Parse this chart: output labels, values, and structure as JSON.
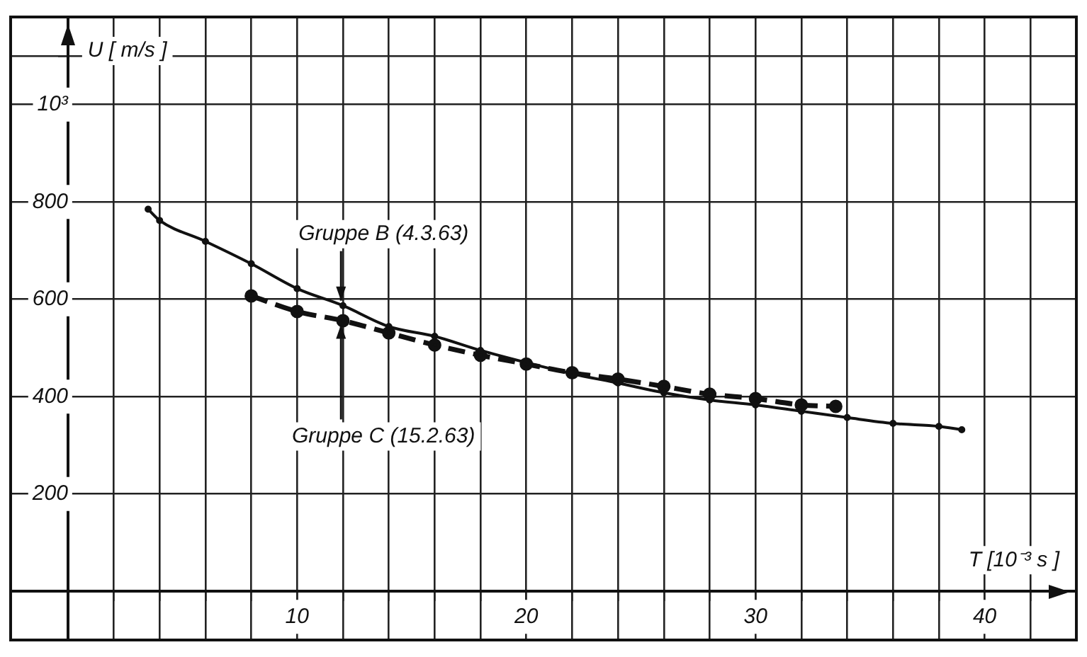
{
  "chart_data": {
    "type": "line",
    "xlabel": "T [10⁻³ s ]",
    "ylabel": "U [ m/s ]",
    "xlim": [
      -2.5,
      44
    ],
    "ylim": [
      -100,
      1180
    ],
    "xticks": [
      {
        "value": 0,
        "label": null
      },
      {
        "value": 2,
        "label": null
      },
      {
        "value": 4,
        "label": null
      },
      {
        "value": 6,
        "label": null
      },
      {
        "value": 8,
        "label": null
      },
      10,
      {
        "value": 12,
        "label": null
      },
      {
        "value": 14,
        "label": null
      },
      {
        "value": 16,
        "label": null
      },
      {
        "value": 18,
        "label": null
      },
      20,
      {
        "value": 22,
        "label": null
      },
      {
        "value": 24,
        "label": null
      },
      {
        "value": 26,
        "label": null
      },
      {
        "value": 28,
        "label": null
      },
      30,
      {
        "value": 32,
        "label": null
      },
      {
        "value": 34,
        "label": null
      },
      {
        "value": 36,
        "label": null
      },
      {
        "value": 38,
        "label": null
      },
      40,
      {
        "value": 42,
        "label": null
      }
    ],
    "yticks": [
      {
        "value": 0,
        "label": null
      },
      200,
      400,
      600,
      800,
      {
        "value": 1000,
        "label": "10³"
      },
      {
        "value": 1100,
        "label": null
      }
    ],
    "grid": true,
    "legend": false,
    "marker": "circle",
    "series": [
      {
        "name": "Gruppe B (4.3.63)",
        "color": "#111111",
        "line_style": "solid",
        "x": [
          3.5,
          4,
          6,
          8,
          10,
          12,
          14,
          16,
          18,
          20,
          22,
          24,
          26,
          28,
          30,
          32,
          34,
          36,
          38,
          39
        ],
        "values": [
          785,
          762,
          719,
          673,
          622,
          587,
          544,
          524,
          495,
          470,
          447,
          428,
          408,
          393,
          383,
          370,
          357,
          345,
          339,
          332
        ]
      },
      {
        "name": "Gruppe C (15.2.63)",
        "color": "#111111",
        "line_style": "dashed",
        "x": [
          8,
          10,
          12,
          14,
          16,
          18,
          20,
          22,
          24,
          26,
          28,
          30,
          32,
          33.5
        ],
        "values": [
          607,
          575,
          556,
          531,
          506,
          485,
          467,
          449,
          436,
          421,
          405,
          396,
          383,
          380
        ]
      }
    ]
  }
}
